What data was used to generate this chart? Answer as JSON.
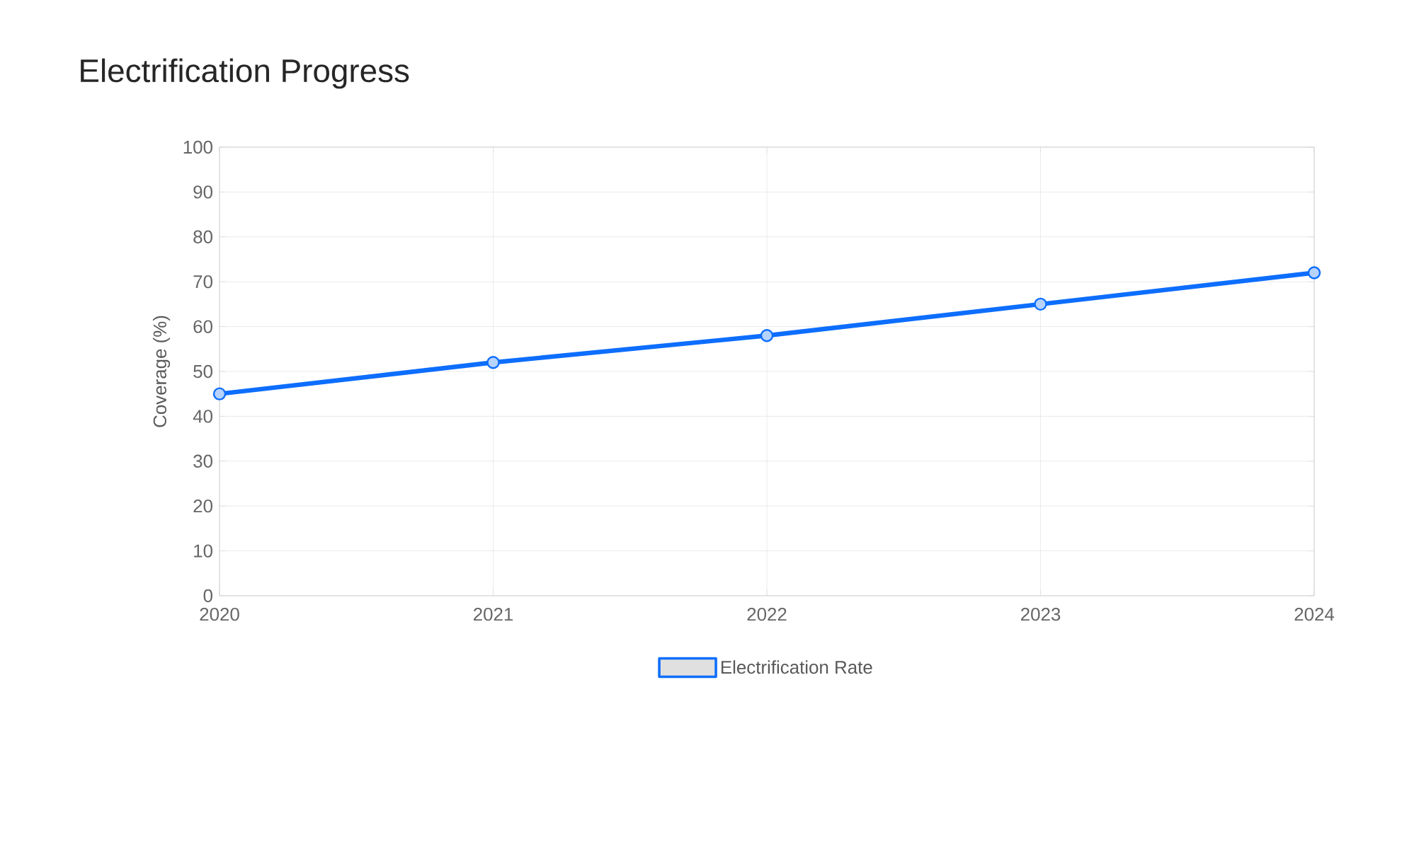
{
  "chart_data": {
    "type": "line",
    "title": "Electrification Progress",
    "ylabel": "Coverage (%)",
    "categories": [
      "2020",
      "2021",
      "2022",
      "2023",
      "2024"
    ],
    "series": [
      {
        "name": "Electrification Rate",
        "color": "#0d6efd",
        "values": [
          45,
          52,
          58,
          65,
          72
        ]
      }
    ],
    "ylim": [
      0,
      100
    ],
    "yticks": [
      0,
      10,
      20,
      30,
      40,
      50,
      60,
      70,
      80,
      90,
      100
    ],
    "grid": true,
    "legend": "bottom",
    "marker": "circle",
    "line_style": "solid"
  }
}
